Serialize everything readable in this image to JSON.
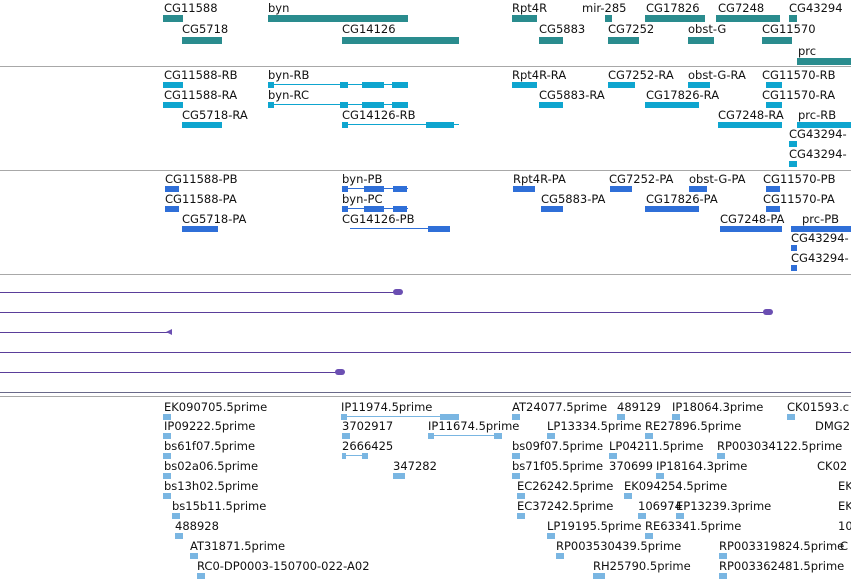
{
  "colors": {
    "gene": "#2a8c8e",
    "mrna": "#0ea5cf",
    "protein": "#2f6fd8",
    "line_track": "#5a3e9a",
    "est": "#7ab6e2",
    "separator": "#a8a8a8"
  },
  "gene_track": {
    "labels": [
      "CG11588",
      "byn",
      "Rpt4R",
      "mir-285",
      "CG17826",
      "CG7248",
      "CG43294",
      "CG5718",
      "CG14126",
      "CG5883",
      "CG7252",
      "obst-G",
      "CG11570",
      "prc"
    ]
  },
  "mrna_track": {
    "labels": [
      "CG11588-RB",
      "byn-RB",
      "Rpt4R-RA",
      "CG7252-RA",
      "obst-G-RA",
      "CG11570-RB",
      "CG11588-RA",
      "byn-RC",
      "CG5883-RA",
      "CG17826-RA",
      "CG11570-RA",
      "CG5718-RA",
      "CG14126-RB",
      "CG7248-RA",
      "prc-RB",
      "CG43294-",
      "CG43294-"
    ]
  },
  "protein_track": {
    "labels": [
      "CG11588-PB",
      "byn-PB",
      "Rpt4R-PA",
      "CG7252-PA",
      "obst-G-PA",
      "CG11570-PB",
      "CG11588-PA",
      "byn-PC",
      "CG5883-PA",
      "CG17826-PA",
      "CG11570-PA",
      "CG5718-PA",
      "CG14126-PB",
      "CG7248-PA",
      "prc-PB",
      "CG43294-",
      "CG43294-"
    ]
  },
  "est_track": {
    "labels": [
      "EK090705.5prime",
      "IP11974.5prime",
      "AT24077.5prime",
      "489129",
      "IP18064.3prime",
      "CK01593.c",
      "IP09222.5prime",
      "3702917",
      "IP11674.5prime",
      "LP13334.5prime",
      "RE27896.5prime",
      "DMG2",
      "bs61f07.5prime",
      "2666425",
      "bs09f07.5prime",
      "LP04211.5prime",
      "RP003034122.5prime",
      "bs02a06.5prime",
      "347282",
      "bs71f05.5prime",
      "370699",
      "IP18164.3prime",
      "CK02",
      "bs13h02.5prime",
      "EC26242.5prime",
      "EK094254.5prime",
      "bs15b11.5prime",
      "EC37242.5prime",
      "106974",
      "EP13239.3prime",
      "488928",
      "LP19195.5prime",
      "RE63341.5prime",
      "AT31871.5prime",
      "RP003530439.5prime",
      "RP003319824.5prime",
      "RC0-DP0003-150700-022-A02",
      "RH25790.5prime",
      "RP003362481.5prime",
      "EK",
      "EK",
      "10",
      "C"
    ]
  }
}
